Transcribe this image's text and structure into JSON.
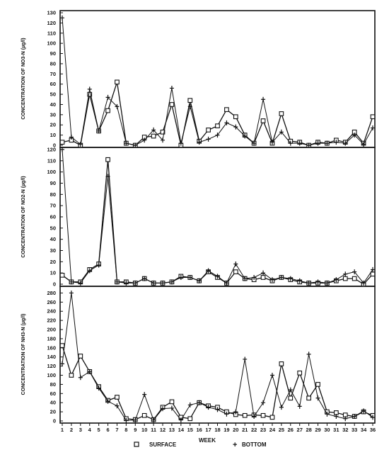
{
  "chart_data": [
    {
      "type": "line",
      "ylabel": "CONCENTRATION OF NO3-N (µg/l)",
      "ylim": [
        0,
        130
      ],
      "yticks": [
        0,
        10,
        20,
        30,
        40,
        50,
        60,
        70,
        80,
        90,
        100,
        110,
        120,
        130
      ],
      "series": [
        {
          "name": "SURFACE",
          "marker": "square",
          "values": [
            3,
            5,
            0,
            50,
            14,
            34,
            62,
            2,
            0,
            8,
            9,
            13,
            40,
            0,
            44,
            4,
            15,
            19,
            35,
            28,
            10,
            2,
            24,
            2,
            31,
            4,
            3,
            0,
            3,
            2,
            5,
            3,
            13,
            2,
            28
          ]
        },
        {
          "name": "BOTTOM",
          "marker": "plus",
          "values": [
            125,
            8,
            1,
            55,
            14,
            47,
            38,
            2,
            0,
            5,
            15,
            5,
            56,
            2,
            38,
            3,
            6,
            10,
            22,
            18,
            9,
            2,
            45,
            3,
            13,
            2,
            2,
            0,
            2,
            2,
            3,
            2,
            10,
            1,
            17
          ]
        }
      ]
    },
    {
      "type": "line",
      "ylabel": "CONCENTRATION OF NO2-N (µg/l)",
      "ylim": [
        0,
        120
      ],
      "yticks": [
        0,
        10,
        20,
        30,
        40,
        50,
        60,
        70,
        80,
        90,
        100,
        110,
        120
      ],
      "series": [
        {
          "name": "SURFACE",
          "marker": "square",
          "values": [
            8,
            2,
            2,
            13,
            18,
            111,
            2,
            2,
            1,
            5,
            1,
            1,
            2,
            7,
            6,
            3,
            11,
            6,
            1,
            11,
            5,
            4,
            6,
            3,
            6,
            4,
            2,
            1,
            1,
            1,
            3,
            5,
            5,
            0,
            9
          ]
        },
        {
          "name": "BOTTOM",
          "marker": "plus",
          "values": [
            129,
            2,
            1,
            12,
            17,
            96,
            2,
            1,
            1,
            5,
            1,
            1,
            2,
            6,
            6,
            3,
            12,
            7,
            1,
            18,
            5,
            6,
            10,
            4,
            6,
            5,
            3,
            1,
            2,
            1,
            4,
            9,
            11,
            1,
            13
          ]
        }
      ]
    },
    {
      "type": "line",
      "ylabel": "CONCENTRATION OF NH3-N (µg/l)",
      "ylim": [
        0,
        290
      ],
      "yticks": [
        0,
        20,
        40,
        60,
        80,
        100,
        120,
        140,
        160,
        180,
        200,
        220,
        240,
        260,
        280
      ],
      "series": [
        {
          "name": "SURFACE",
          "marker": "square",
          "values": [
            165,
            100,
            142,
            108,
            75,
            45,
            52,
            5,
            3,
            12,
            3,
            30,
            42,
            8,
            5,
            40,
            33,
            30,
            20,
            14,
            12,
            13,
            12,
            8,
            125,
            50,
            105,
            50,
            80,
            20,
            18,
            13,
            10,
            20,
            12
          ]
        },
        {
          "name": "BOTTOM",
          "marker": "plus",
          "values": [
            125,
            280,
            95,
            108,
            72,
            43,
            33,
            1,
            2,
            58,
            2,
            27,
            28,
            2,
            35,
            40,
            30,
            25,
            15,
            20,
            135,
            10,
            40,
            100,
            30,
            68,
            32,
            146,
            50,
            15,
            10,
            5,
            10,
            22,
            8
          ]
        }
      ]
    }
  ],
  "x_axis": {
    "label": "WEEK",
    "ticks": [
      "1",
      "2",
      "3",
      "4",
      "5",
      "6",
      "7",
      "8",
      "9",
      "10",
      "11",
      "12",
      "13",
      "14",
      "15",
      "16",
      "17",
      "18",
      "19",
      "20",
      "21",
      "22",
      "23",
      "24",
      "25",
      "26",
      "27",
      "28",
      "29",
      "30",
      "31",
      "32",
      "33",
      "34",
      "36"
    ]
  },
  "legend": {
    "position": "bottom",
    "items": [
      {
        "symbol": "□",
        "label": "SURFACE"
      },
      {
        "symbol": "+",
        "label": "BOTTOM"
      }
    ]
  }
}
